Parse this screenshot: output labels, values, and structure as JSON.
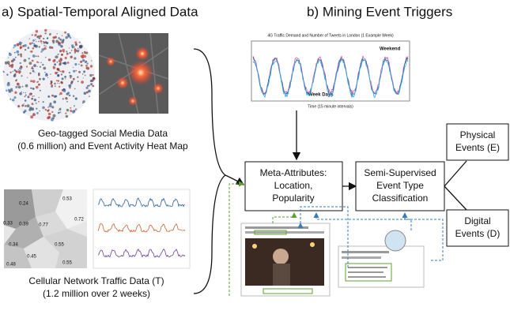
{
  "panel_a": {
    "title": "a) Spatial-Temporal Aligned Data",
    "social_caption": [
      "Geo-tagged Social Media Data",
      "(0.6 million) and Event Activity Heat Map"
    ],
    "cellular_caption": [
      "Cellular Network Traffic Data (T)",
      "(1.2 million over 2 weeks)"
    ],
    "map_labels": [
      "0.24",
      "0.53",
      "0.39",
      "0.77",
      "0.72",
      "0.33",
      "0.34",
      "0.55",
      "0.45",
      "0.48",
      "0.55"
    ]
  },
  "panel_b": {
    "title": "b) Mining Event Triggers",
    "chart": {
      "title": "4G Traffic Demand and Number of Tweets in London (1 Example Week)",
      "weekend_label": "Weekend",
      "weekdays_label": "Week Days",
      "x_label": "Time (15 minute intervals)"
    },
    "nodes": {
      "meta": [
        "Meta-Attributes:",
        "Location,",
        "Popularity"
      ],
      "classify": [
        "Semi-Supervised",
        "Event Type",
        "Classification"
      ],
      "physical": [
        "Physical",
        "Events (E)"
      ],
      "digital": [
        "Digital",
        "Events (D)"
      ]
    }
  }
}
